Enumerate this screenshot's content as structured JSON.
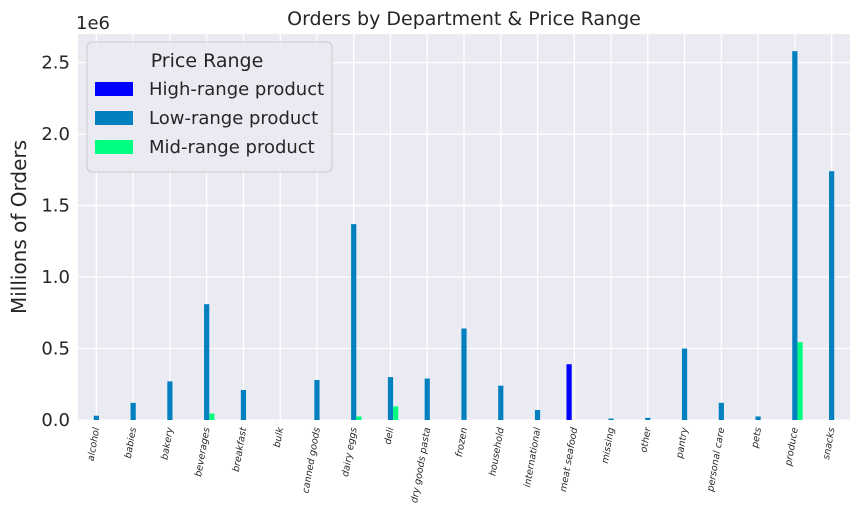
{
  "chart_data": {
    "type": "bar",
    "title": "Orders by Department & Price Range",
    "ylabel": "Millions of Orders",
    "xlabel": "",
    "y_offset_text": "1e6",
    "ylim": [
      0,
      2700000
    ],
    "yticks": [
      0,
      500000,
      1000000,
      1500000,
      2000000,
      2500000
    ],
    "ytick_labels": [
      "0.0",
      "0.5",
      "1.0",
      "1.5",
      "2.0",
      "2.5"
    ],
    "grid": true,
    "legend": {
      "title": "Price Range",
      "placement": "top-left"
    },
    "categories": [
      "alcohol",
      "babies",
      "bakery",
      "beverages",
      "breakfast",
      "bulk",
      "canned goods",
      "dairy eggs",
      "deli",
      "dry goods pasta",
      "frozen",
      "household",
      "international",
      "meat seafood",
      "missing",
      "other",
      "pantry",
      "personal care",
      "pets",
      "produce",
      "snacks"
    ],
    "series": [
      {
        "name": "High-range product",
        "color": "#0000ff",
        "values": [
          0,
          0,
          0,
          0,
          0,
          0,
          0,
          0,
          0,
          0,
          0,
          0,
          0,
          390000,
          0,
          0,
          0,
          0,
          0,
          0,
          0
        ]
      },
      {
        "name": "Low-range product",
        "color": "#0080bf",
        "values": [
          30000,
          120000,
          270000,
          810000,
          210000,
          0,
          280000,
          1370000,
          300000,
          290000,
          640000,
          240000,
          70000,
          0,
          10000,
          15000,
          500000,
          120000,
          25000,
          2580000,
          1740000
        ]
      },
      {
        "name": "Mid-range product",
        "color": "#00ff80",
        "values": [
          0,
          0,
          0,
          45000,
          0,
          0,
          0,
          25000,
          95000,
          0,
          0,
          0,
          0,
          0,
          0,
          0,
          0,
          0,
          0,
          545000,
          0
        ]
      }
    ]
  }
}
